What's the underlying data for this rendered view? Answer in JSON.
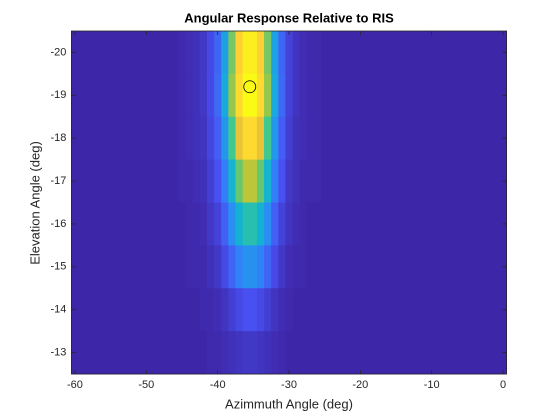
{
  "chart_data": {
    "type": "heatmap",
    "title": "Angular Response Relative to RIS",
    "xlabel": "Azimmuth Angle (deg)",
    "ylabel": "Elevation Angle (deg)",
    "colormap": "parula",
    "y_reversed": true,
    "x": [
      -60,
      -59,
      -58,
      -57,
      -56,
      -55,
      -54,
      -53,
      -52,
      -51,
      -50,
      -49,
      -48,
      -47,
      -46,
      -45,
      -44,
      -43,
      -42,
      -41,
      -40,
      -39,
      -38,
      -37,
      -36,
      -35,
      -34,
      -33,
      -32,
      -31,
      -30,
      -29,
      -28,
      -27,
      -26,
      -25,
      -24,
      -23,
      -22,
      -21,
      -20,
      -19,
      -18,
      -17,
      -16,
      -15,
      -14,
      -13,
      -12,
      -11,
      -10,
      -9,
      -8,
      -7,
      -6,
      -5,
      -4,
      -3,
      -2,
      -1,
      0
    ],
    "y": [
      -20,
      -19,
      -18,
      -17,
      -16,
      -15,
      -14,
      -13
    ],
    "z": [
      [
        0.03,
        0.03,
        0.03,
        0.03,
        0.03,
        0.03,
        0.03,
        0.03,
        0.03,
        0.03,
        0.03,
        0.03,
        0.03,
        0.03,
        0.03,
        0.04,
        0.05,
        0.06,
        0.08,
        0.13,
        0.2,
        0.36,
        0.6,
        0.84,
        0.98,
        0.98,
        0.84,
        0.6,
        0.36,
        0.2,
        0.11,
        0.07,
        0.05,
        0.04,
        0.04,
        0.03,
        0.03,
        0.03,
        0.03,
        0.03,
        0.03,
        0.03,
        0.03,
        0.03,
        0.03,
        0.03,
        0.03,
        0.03,
        0.03,
        0.03,
        0.03,
        0.03,
        0.03,
        0.03,
        0.03,
        0.03,
        0.03,
        0.03,
        0.03,
        0.03,
        0.03
      ],
      [
        0.03,
        0.03,
        0.03,
        0.03,
        0.03,
        0.03,
        0.03,
        0.03,
        0.03,
        0.03,
        0.03,
        0.03,
        0.03,
        0.03,
        0.03,
        0.04,
        0.05,
        0.06,
        0.08,
        0.13,
        0.21,
        0.38,
        0.63,
        0.88,
        1.03,
        1.03,
        0.88,
        0.63,
        0.38,
        0.21,
        0.11,
        0.07,
        0.05,
        0.04,
        0.04,
        0.03,
        0.03,
        0.03,
        0.03,
        0.03,
        0.03,
        0.03,
        0.03,
        0.03,
        0.03,
        0.03,
        0.03,
        0.03,
        0.03,
        0.03,
        0.03,
        0.03,
        0.03,
        0.03,
        0.03,
        0.03,
        0.03,
        0.03,
        0.03,
        0.03,
        0.03
      ],
      [
        0.03,
        0.03,
        0.03,
        0.03,
        0.03,
        0.03,
        0.03,
        0.03,
        0.03,
        0.03,
        0.03,
        0.03,
        0.03,
        0.03,
        0.03,
        0.04,
        0.05,
        0.06,
        0.07,
        0.12,
        0.18,
        0.33,
        0.54,
        0.75,
        0.88,
        0.88,
        0.75,
        0.54,
        0.33,
        0.18,
        0.1,
        0.06,
        0.05,
        0.04,
        0.04,
        0.03,
        0.03,
        0.03,
        0.03,
        0.03,
        0.03,
        0.03,
        0.03,
        0.03,
        0.03,
        0.03,
        0.03,
        0.03,
        0.03,
        0.03,
        0.03,
        0.03,
        0.03,
        0.03,
        0.03,
        0.03,
        0.03,
        0.03,
        0.03,
        0.03,
        0.03
      ],
      [
        0.03,
        0.03,
        0.03,
        0.03,
        0.03,
        0.03,
        0.03,
        0.03,
        0.03,
        0.03,
        0.03,
        0.03,
        0.03,
        0.03,
        0.03,
        0.04,
        0.04,
        0.05,
        0.06,
        0.1,
        0.15,
        0.26,
        0.42,
        0.58,
        0.68,
        0.68,
        0.58,
        0.42,
        0.26,
        0.15,
        0.08,
        0.06,
        0.04,
        0.04,
        0.04,
        0.03,
        0.03,
        0.03,
        0.03,
        0.03,
        0.03,
        0.03,
        0.03,
        0.03,
        0.03,
        0.03,
        0.03,
        0.03,
        0.03,
        0.03,
        0.03,
        0.03,
        0.03,
        0.03,
        0.03,
        0.03,
        0.03,
        0.03,
        0.03,
        0.03,
        0.03
      ],
      [
        0.03,
        0.03,
        0.03,
        0.03,
        0.03,
        0.03,
        0.03,
        0.03,
        0.03,
        0.03,
        0.03,
        0.03,
        0.03,
        0.03,
        0.03,
        0.03,
        0.04,
        0.04,
        0.05,
        0.08,
        0.11,
        0.19,
        0.3,
        0.41,
        0.48,
        0.48,
        0.41,
        0.3,
        0.19,
        0.11,
        0.07,
        0.05,
        0.04,
        0.03,
        0.03,
        0.03,
        0.03,
        0.03,
        0.03,
        0.03,
        0.03,
        0.03,
        0.03,
        0.03,
        0.03,
        0.03,
        0.03,
        0.03,
        0.03,
        0.03,
        0.03,
        0.03,
        0.03,
        0.03,
        0.03,
        0.03,
        0.03,
        0.03,
        0.03,
        0.03,
        0.03
      ],
      [
        0.03,
        0.03,
        0.03,
        0.03,
        0.03,
        0.03,
        0.03,
        0.03,
        0.03,
        0.03,
        0.03,
        0.03,
        0.03,
        0.03,
        0.03,
        0.03,
        0.04,
        0.04,
        0.04,
        0.06,
        0.08,
        0.13,
        0.2,
        0.27,
        0.31,
        0.31,
        0.27,
        0.2,
        0.13,
        0.08,
        0.05,
        0.04,
        0.04,
        0.03,
        0.03,
        0.03,
        0.03,
        0.03,
        0.03,
        0.03,
        0.03,
        0.03,
        0.03,
        0.03,
        0.03,
        0.03,
        0.03,
        0.03,
        0.03,
        0.03,
        0.03,
        0.03,
        0.03,
        0.03,
        0.03,
        0.03,
        0.03,
        0.03,
        0.03,
        0.03,
        0.03
      ],
      [
        0.03,
        0.03,
        0.03,
        0.03,
        0.03,
        0.03,
        0.03,
        0.03,
        0.03,
        0.03,
        0.03,
        0.03,
        0.03,
        0.03,
        0.03,
        0.03,
        0.03,
        0.03,
        0.04,
        0.04,
        0.05,
        0.07,
        0.1,
        0.13,
        0.15,
        0.15,
        0.13,
        0.1,
        0.07,
        0.05,
        0.04,
        0.03,
        0.03,
        0.03,
        0.03,
        0.03,
        0.03,
        0.03,
        0.03,
        0.03,
        0.03,
        0.03,
        0.03,
        0.03,
        0.03,
        0.03,
        0.03,
        0.03,
        0.03,
        0.03,
        0.03,
        0.03,
        0.03,
        0.03,
        0.03,
        0.03,
        0.03,
        0.03,
        0.03,
        0.03,
        0.03
      ],
      [
        0.03,
        0.03,
        0.03,
        0.03,
        0.03,
        0.03,
        0.03,
        0.03,
        0.03,
        0.03,
        0.03,
        0.03,
        0.03,
        0.03,
        0.03,
        0.03,
        0.03,
        0.03,
        0.03,
        0.04,
        0.04,
        0.05,
        0.06,
        0.07,
        0.08,
        0.08,
        0.07,
        0.06,
        0.05,
        0.04,
        0.03,
        0.03,
        0.03,
        0.03,
        0.03,
        0.03,
        0.03,
        0.03,
        0.03,
        0.03,
        0.03,
        0.03,
        0.03,
        0.03,
        0.03,
        0.03,
        0.03,
        0.03,
        0.03,
        0.03,
        0.03,
        0.03,
        0.03,
        0.03,
        0.03,
        0.03,
        0.03,
        0.03,
        0.03,
        0.03,
        0.03
      ]
    ],
    "marker": {
      "x": -35.5,
      "y": -19.2
    },
    "xlim": [
      -60.5,
      0.5
    ],
    "ylim": [
      -20.5,
      -12.5
    ],
    "xticks": [
      -60,
      -50,
      -40,
      -30,
      -20,
      -10,
      0
    ],
    "yticks": [
      -20,
      -19,
      -18,
      -17,
      -16,
      -15,
      -14,
      -13
    ]
  }
}
